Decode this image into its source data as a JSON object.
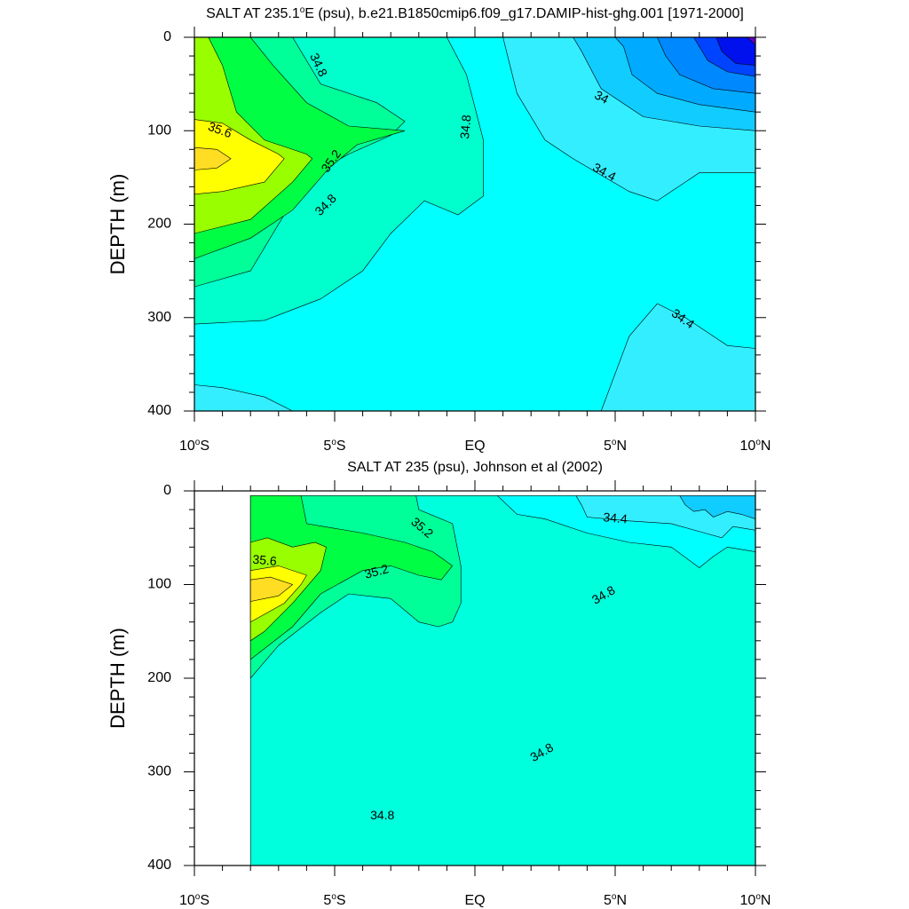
{
  "chart_data": [
    {
      "type": "contour",
      "title": "SALT AT 235.1°E (psu), b.e21.B1850cmip6.f09_g17.DAMIP-hist-ghg.001 [1971-2000]",
      "title_parts": [
        "SALT AT 235.1",
        "o",
        "E (psu), b.e21.B1850cmip6.f09_g17.DAMIP-hist-ghg.001 [1971-2000]"
      ],
      "ylabel": "DEPTH (m)",
      "xlabel": "",
      "xlim": [
        -10,
        10
      ],
      "ylim": [
        400,
        0
      ],
      "x_ticks": [
        {
          "value": -10,
          "parts": [
            "10",
            "o",
            "S"
          ]
        },
        {
          "value": -5,
          "parts": [
            "5",
            "o",
            "S"
          ]
        },
        {
          "value": 0,
          "parts": [
            "EQ",
            "",
            ""
          ]
        },
        {
          "value": 5,
          "parts": [
            "5",
            "o",
            "N"
          ]
        },
        {
          "value": 10,
          "parts": [
            "10",
            "o",
            "N"
          ]
        }
      ],
      "y_ticks": [
        "0",
        "100",
        "200",
        "300",
        "400"
      ],
      "contour_interval": 0.2,
      "contour_labels": [
        {
          "text": "34.8",
          "x": -5.6,
          "y": 30,
          "angle": 65
        },
        {
          "text": "35.6",
          "x": -9.1,
          "y": 100,
          "angle": 20
        },
        {
          "text": "35.2",
          "x": -5.1,
          "y": 133,
          "angle": -55
        },
        {
          "text": "34.8",
          "x": -5.3,
          "y": 180,
          "angle": -45
        },
        {
          "text": "34.8",
          "x": -0.3,
          "y": 96,
          "angle": -85
        },
        {
          "text": "34",
          "x": 4.5,
          "y": 65,
          "angle": 28
        },
        {
          "text": "34.4",
          "x": 4.6,
          "y": 145,
          "angle": 28
        },
        {
          "text": "34.4",
          "x": 7.4,
          "y": 302,
          "angle": 35
        }
      ],
      "fill_regions": [
        {
          "level": 34.6,
          "color": "#00ffff",
          "points": [
            [
              -10,
              0
            ],
            [
              10,
              0
            ],
            [
              10,
              400
            ],
            [
              -10,
              400
            ]
          ]
        },
        {
          "level": 34.4,
          "color": "#33eeff",
          "points": [
            [
              1,
              0
            ],
            [
              10,
              0
            ],
            [
              10,
              145
            ],
            [
              8,
              145
            ],
            [
              6.5,
              175
            ],
            [
              5.5,
              165
            ],
            [
              3.5,
              130
            ],
            [
              2.5,
              110
            ],
            [
              1.5,
              60
            ]
          ]
        },
        {
          "level": 34.4,
          "color": "#33eeff",
          "points": [
            [
              4.5,
              400
            ],
            [
              5.5,
              320
            ],
            [
              6.5,
              285
            ],
            [
              7.5,
              300
            ],
            [
              9,
              330
            ],
            [
              10,
              333
            ],
            [
              10,
              400
            ]
          ]
        },
        {
          "level": 34.4,
          "color": "#33eeff",
          "points": [
            [
              -10,
              372
            ],
            [
              -9,
              375
            ],
            [
              -7.5,
              385
            ],
            [
              -6.5,
              400
            ],
            [
              -10,
              400
            ]
          ]
        },
        {
          "level": 34.2,
          "color": "#11ccff",
          "points": [
            [
              3.5,
              0
            ],
            [
              10,
              0
            ],
            [
              10,
              100
            ],
            [
              8,
              95
            ],
            [
              6,
              85
            ],
            [
              4.5,
              55
            ],
            [
              3.8,
              15
            ]
          ]
        },
        {
          "level": 34.0,
          "color": "#00aaff",
          "points": [
            [
              5,
              0
            ],
            [
              10,
              0
            ],
            [
              10,
              80
            ],
            [
              8,
              72
            ],
            [
              6.5,
              60
            ],
            [
              5.6,
              40
            ],
            [
              5.3,
              10
            ]
          ]
        },
        {
          "level": 33.8,
          "color": "#0088ff",
          "points": [
            [
              6.5,
              0
            ],
            [
              10,
              0
            ],
            [
              10,
              60
            ],
            [
              8.5,
              55
            ],
            [
              7.3,
              40
            ],
            [
              6.8,
              20
            ]
          ]
        },
        {
          "level": 33.6,
          "color": "#0044ff",
          "points": [
            [
              7.8,
              0
            ],
            [
              10,
              0
            ],
            [
              10,
              42
            ],
            [
              9,
              37
            ],
            [
              8.3,
              25
            ],
            [
              8,
              10
            ]
          ]
        },
        {
          "level": 33.4,
          "color": "#0011ee",
          "points": [
            [
              8.6,
              0
            ],
            [
              10,
              0
            ],
            [
              10,
              30
            ],
            [
              9.3,
              28
            ],
            [
              8.8,
              15
            ]
          ]
        },
        {
          "level": 33.2,
          "color": "#6600cc",
          "points": [
            [
              9.7,
              0
            ],
            [
              10,
              0
            ],
            [
              10,
              8
            ]
          ]
        },
        {
          "level": 34.8,
          "color": "#00ffcc",
          "points": [
            [
              -10,
              0
            ],
            [
              -1,
              0
            ],
            [
              -0.3,
              40
            ],
            [
              0.3,
              110
            ],
            [
              0.3,
              170
            ],
            [
              -0.6,
              190
            ],
            [
              -1.8,
              175
            ],
            [
              -3,
              210
            ],
            [
              -4,
              250
            ],
            [
              -5.5,
              280
            ],
            [
              -7.5,
              303
            ],
            [
              -10,
              307
            ]
          ]
        },
        {
          "level": 35.0,
          "color": "#00ff99",
          "points": [
            [
              -10,
              0
            ],
            [
              -6.5,
              0
            ],
            [
              -5.5,
              50
            ],
            [
              -3.5,
              70
            ],
            [
              -2.5,
              90
            ],
            [
              -3,
              105
            ],
            [
              -4.5,
              125
            ],
            [
              -6,
              150
            ],
            [
              -7,
              200
            ],
            [
              -8,
              250
            ],
            [
              -10,
              267
            ]
          ]
        },
        {
          "level": 35.2,
          "color": "#00ff44",
          "points": [
            [
              -10,
              0
            ],
            [
              -8,
              0
            ],
            [
              -7.2,
              30
            ],
            [
              -6,
              70
            ],
            [
              -4.5,
              95
            ],
            [
              -2.5,
              100
            ],
            [
              -4.2,
              115
            ],
            [
              -5.2,
              140
            ],
            [
              -6.5,
              185
            ],
            [
              -8,
              215
            ],
            [
              -10,
              237
            ]
          ]
        },
        {
          "level": 35.4,
          "color": "#99ff00",
          "points": [
            [
              -10,
              0
            ],
            [
              -9.5,
              0
            ],
            [
              -9,
              30
            ],
            [
              -8.5,
              80
            ],
            [
              -7.5,
              110
            ],
            [
              -6,
              125
            ],
            [
              -5.8,
              130
            ],
            [
              -6.5,
              155
            ],
            [
              -8,
              195
            ],
            [
              -10,
              210
            ]
          ]
        },
        {
          "level": 35.6,
          "color": "#ffff00",
          "points": [
            [
              -10,
              88
            ],
            [
              -9,
              92
            ],
            [
              -8,
              110
            ],
            [
              -7,
              125
            ],
            [
              -6.8,
              130
            ],
            [
              -7.5,
              155
            ],
            [
              -9,
              165
            ],
            [
              -10,
              168
            ]
          ]
        },
        {
          "level": 35.8,
          "color": "#ffdd22",
          "points": [
            [
              -10,
              118
            ],
            [
              -9.2,
              120
            ],
            [
              -8.7,
              130
            ],
            [
              -9.2,
              140
            ],
            [
              -10,
              142
            ]
          ]
        }
      ],
      "data_region_x": [
        -10,
        10
      ]
    },
    {
      "type": "contour",
      "title": "SALT AT 235 (psu), Johnson et al (2002)",
      "title_parts": [
        "SALT AT 235 (psu), Johnson et al (2002)",
        "",
        ""
      ],
      "ylabel": "DEPTH (m)",
      "xlabel": "",
      "xlim": [
        -10,
        10
      ],
      "ylim": [
        400,
        0
      ],
      "x_ticks": [
        {
          "value": -10,
          "parts": [
            "10",
            "o",
            "S"
          ]
        },
        {
          "value": -5,
          "parts": [
            "5",
            "o",
            "S"
          ]
        },
        {
          "value": 0,
          "parts": [
            "EQ",
            "",
            ""
          ]
        },
        {
          "value": 5,
          "parts": [
            "5",
            "o",
            "N"
          ]
        },
        {
          "value": 10,
          "parts": [
            "10",
            "o",
            "N"
          ]
        }
      ],
      "y_ticks": [
        "0",
        "100",
        "200",
        "300",
        "400"
      ],
      "contour_interval": 0.2,
      "contour_labels": [
        {
          "text": "35.2",
          "x": -1.9,
          "y": 40,
          "angle": 40
        },
        {
          "text": "34.4",
          "x": 5,
          "y": 30,
          "angle": 5
        },
        {
          "text": "35.6",
          "x": -7.5,
          "y": 75,
          "angle": 5
        },
        {
          "text": "35.2",
          "x": -3.5,
          "y": 87,
          "angle": -15
        },
        {
          "text": "34.8",
          "x": 4.6,
          "y": 112,
          "angle": -30
        },
        {
          "text": "34.8",
          "x": 2.4,
          "y": 280,
          "angle": -30
        },
        {
          "text": "34.8",
          "x": -3.3,
          "y": 347,
          "angle": 0
        }
      ],
      "fill_regions": [
        {
          "level": 34.8,
          "color": "#00ffdd",
          "points": [
            [
              -8,
              5
            ],
            [
              10,
              5
            ],
            [
              10,
              400
            ],
            [
              -8,
              400
            ]
          ]
        },
        {
          "level": 34.6,
          "color": "#00ffff",
          "points": [
            [
              0.8,
              5
            ],
            [
              10,
              5
            ],
            [
              10,
              65
            ],
            [
              9,
              60
            ],
            [
              8.5,
              70
            ],
            [
              8,
              82
            ],
            [
              7,
              60
            ],
            [
              5.5,
              55
            ],
            [
              4,
              45
            ],
            [
              2.5,
              30
            ],
            [
              1.5,
              25
            ]
          ]
        },
        {
          "level": 34.4,
          "color": "#33eeff",
          "points": [
            [
              3.6,
              5
            ],
            [
              10,
              5
            ],
            [
              10,
              42
            ],
            [
              9.2,
              38
            ],
            [
              8.8,
              50
            ],
            [
              8.2,
              45
            ],
            [
              7,
              35
            ],
            [
              5.5,
              32
            ],
            [
              4,
              28
            ],
            [
              3.8,
              15
            ]
          ]
        },
        {
          "level": 34.2,
          "color": "#11ccff",
          "points": [
            [
              7.3,
              5
            ],
            [
              10,
              5
            ],
            [
              10,
              30
            ],
            [
              9.5,
              25
            ],
            [
              9,
              22
            ],
            [
              8.5,
              28
            ],
            [
              8.2,
              20
            ],
            [
              7.8,
              22
            ],
            [
              7.5,
              15
            ]
          ]
        },
        {
          "level": 35.0,
          "color": "#00ff99",
          "points": [
            [
              -8,
              5
            ],
            [
              -2.1,
              5
            ],
            [
              -2,
              20
            ],
            [
              -0.8,
              35
            ],
            [
              -0.5,
              80
            ],
            [
              -0.5,
              120
            ],
            [
              -0.8,
              140
            ],
            [
              -1.3,
              145
            ],
            [
              -2,
              140
            ],
            [
              -3,
              115
            ],
            [
              -4.5,
              110
            ],
            [
              -5.5,
              130
            ],
            [
              -7,
              165
            ],
            [
              -8,
              200
            ]
          ]
        },
        {
          "level": 35.2,
          "color": "#00ff44",
          "points": [
            [
              -8,
              5
            ],
            [
              -6.2,
              5
            ],
            [
              -6,
              35
            ],
            [
              -4,
              45
            ],
            [
              -2.5,
              55
            ],
            [
              -1.5,
              65
            ],
            [
              -0.8,
              80
            ],
            [
              -1.2,
              95
            ],
            [
              -2,
              90
            ],
            [
              -3,
              80
            ],
            [
              -4,
              85
            ],
            [
              -5.5,
              110
            ],
            [
              -6.5,
              145
            ],
            [
              -8,
              180
            ]
          ]
        },
        {
          "level": 35.4,
          "color": "#99ff00",
          "points": [
            [
              -8,
              55
            ],
            [
              -7.4,
              50
            ],
            [
              -6.5,
              60
            ],
            [
              -5.7,
              55
            ],
            [
              -5.3,
              60
            ],
            [
              -5.5,
              85
            ],
            [
              -6.5,
              120
            ],
            [
              -7.5,
              150
            ],
            [
              -8,
              160
            ]
          ]
        },
        {
          "level": 35.6,
          "color": "#ffff00",
          "points": [
            [
              -8,
              85
            ],
            [
              -7,
              80
            ],
            [
              -6,
              90
            ],
            [
              -6.2,
              100
            ],
            [
              -6.8,
              120
            ],
            [
              -8,
              140
            ]
          ]
        },
        {
          "level": 35.8,
          "color": "#ffdd22",
          "points": [
            [
              -8,
              95
            ],
            [
              -7.3,
              92
            ],
            [
              -6.5,
              100
            ],
            [
              -7,
              112
            ],
            [
              -8,
              118
            ]
          ]
        }
      ],
      "data_region_x": [
        -8,
        10
      ]
    }
  ]
}
